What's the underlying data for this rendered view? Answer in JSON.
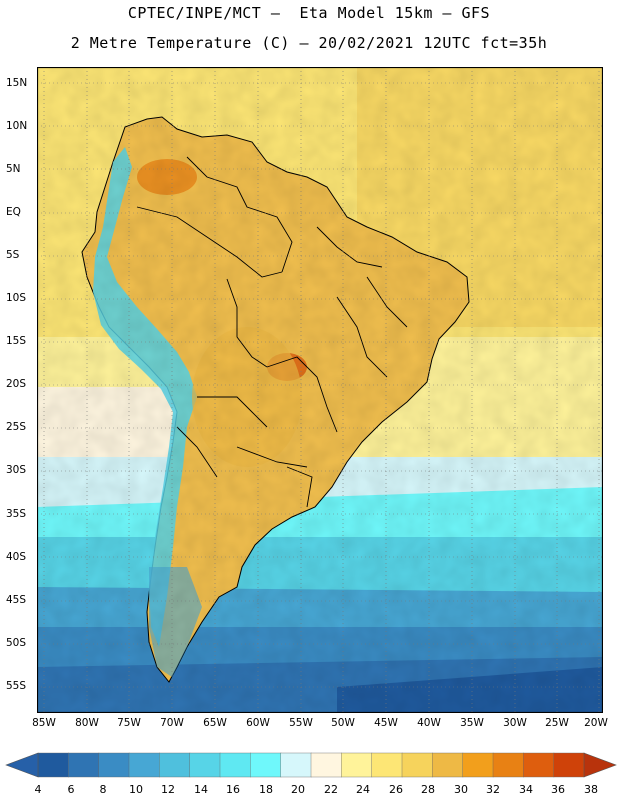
{
  "header": {
    "line1": "CPTEC/INPE/MCT –  Eta Model 15km – GFS",
    "line2": "2 Metre Temperature (C) – 20/02/2021 12UTC fct=35h"
  },
  "map": {
    "region": "South America",
    "lat_labels": [
      "15N",
      "10N",
      "5N",
      "EQ",
      "5S",
      "10S",
      "15S",
      "20S",
      "25S",
      "30S",
      "35S",
      "40S",
      "45S",
      "50S",
      "55S"
    ],
    "lon_labels": [
      "85W",
      "80W",
      "75W",
      "70W",
      "65W",
      "60W",
      "55W",
      "50W",
      "45W",
      "40W",
      "35W",
      "30W",
      "25W",
      "20W"
    ]
  },
  "legend": {
    "unit": "C",
    "labels": [
      "4",
      "6",
      "8",
      "10",
      "12",
      "14",
      "16",
      "18",
      "20",
      "22",
      "24",
      "26",
      "28",
      "30",
      "32",
      "34",
      "36",
      "38"
    ],
    "colors": [
      "#1f5a9e",
      "#2f74b3",
      "#3a8cc4",
      "#47a7d4",
      "#4fc0dd",
      "#57d4e7",
      "#5fe8f2",
      "#6ff8fb",
      "#d6f7fb",
      "#fff6e0",
      "#fff39a",
      "#fde675",
      "#f6d35c",
      "#eeb945",
      "#f29f1c",
      "#e88114",
      "#de5e0e",
      "#cf4209"
    ],
    "below_color": "#2660a8",
    "above_color": "#b8330c"
  }
}
